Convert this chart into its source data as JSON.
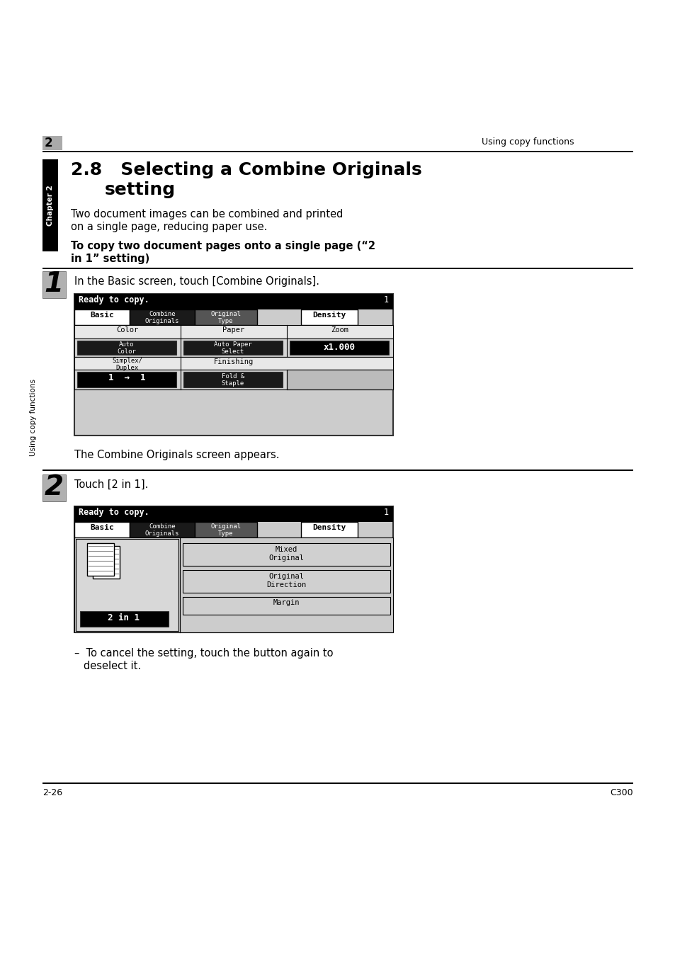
{
  "page_bg": "#ffffff",
  "header_num": "2",
  "header_right": "Using copy functions",
  "footer_left": "2-26",
  "footer_right": "C300",
  "sidebar_chapter": "Chapter 2",
  "sidebar_functions": "Using copy functions",
  "title_line1": "2.8   Selecting a Combine Originals",
  "title_line2": "        setting",
  "intro_line1": "Two document images can be combined and printed",
  "intro_line2": "on a single page, reducing paper use.",
  "bold_line1": "To copy two document pages onto a single page (“2",
  "bold_line2": "in 1” setting)",
  "step1_num": "1",
  "step1_text": "In the Basic screen, touch [Combine Originals].",
  "step1_note": "The Combine Originals screen appears.",
  "step2_num": "2",
  "step2_text": "Touch [2 in 1].",
  "bullet_line1": "–  To cancel the setting, touch the button again to",
  "bullet_line2": "   deselect it."
}
